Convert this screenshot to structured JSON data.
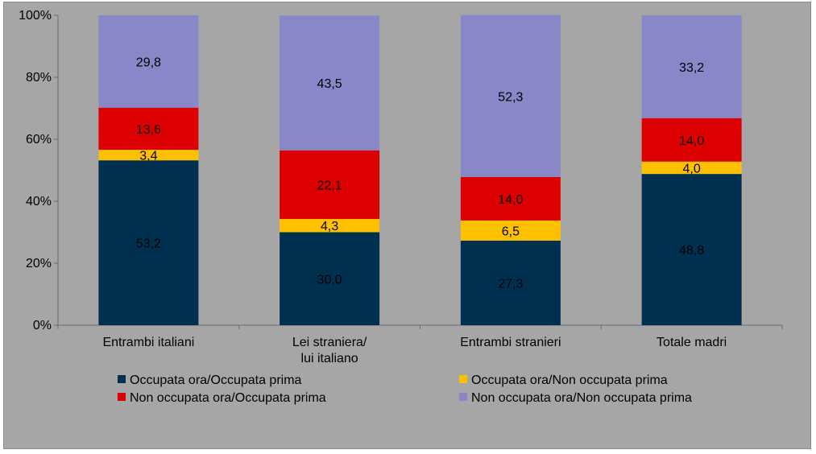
{
  "chart_data": {
    "type": "bar",
    "stacked": true,
    "percent": true,
    "categories": [
      [
        "Entrambi italiani"
      ],
      [
        "Lei straniera/",
        "lui italiano"
      ],
      [
        "Entrambi stranieri"
      ],
      [
        "Totale madri"
      ]
    ],
    "series": [
      {
        "name": "Occupata ora/Occupata prima",
        "color": "#003050",
        "labelColor": "#000000",
        "values": [
          53.2,
          30.0,
          27.3,
          48.8
        ],
        "labels": [
          "53,2",
          "30,0",
          "27,3",
          "48,8"
        ]
      },
      {
        "name": "Occupata ora/Non occupata prima",
        "color": "#ffc000",
        "labelColor": "#000000",
        "values": [
          3.4,
          4.3,
          6.5,
          4.0
        ],
        "labels": [
          "3,4",
          "4,3",
          "6,5",
          "4,0"
        ]
      },
      {
        "name": "Non occupata ora/Occupata prima",
        "color": "#dd0000",
        "labelColor": "#000000",
        "values": [
          13.6,
          22.1,
          14.0,
          14.0
        ],
        "labels": [
          "13,6",
          "22,1",
          "14,0",
          "14,0"
        ]
      },
      {
        "name": "Non occupata ora/Non occupata prima",
        "color": "#8888c8",
        "labelColor": "#000000",
        "values": [
          29.8,
          43.5,
          52.3,
          33.2
        ],
        "labels": [
          "29,8",
          "43,5",
          "52,3",
          "33,2"
        ]
      }
    ],
    "yticks": [
      "0%",
      "20%",
      "40%",
      "60%",
      "80%",
      "100%"
    ],
    "ylim": [
      0,
      100
    ],
    "grid": false,
    "legend_position": "bottom",
    "background": "#a6a6a6"
  }
}
